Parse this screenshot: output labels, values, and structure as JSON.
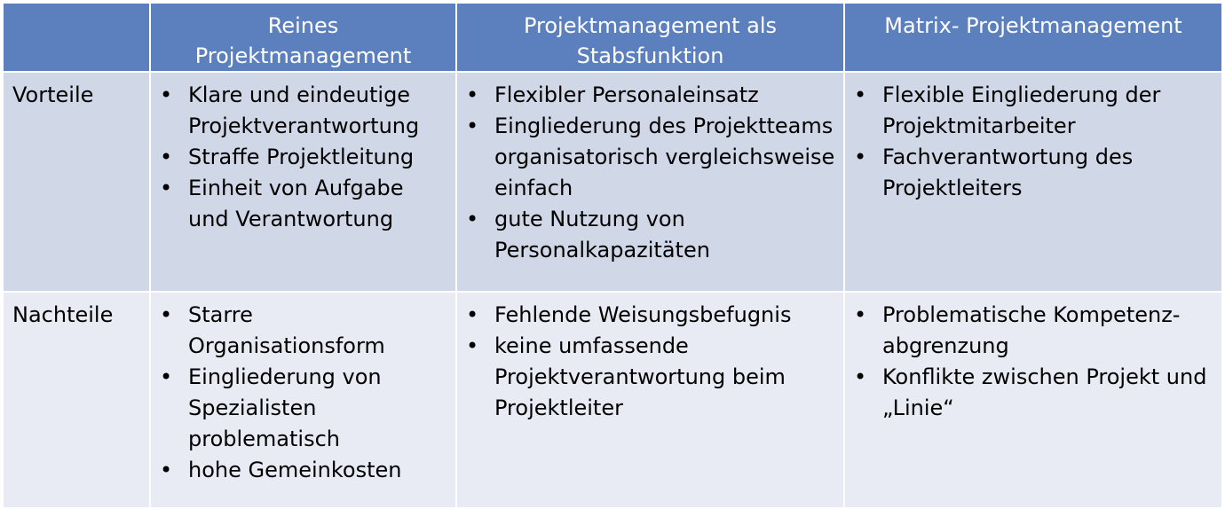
{
  "header": {
    "col0": "",
    "col1": "Reines Projektmanagement",
    "col2": "Projektmanagement als Stabsfunktion",
    "col3": "Matrix- Projektmanagement"
  },
  "rows": [
    {
      "label": "Vorteile",
      "cells": [
        [
          "Klare und eindeutige Projektverantwortung",
          "Straffe Projektleitung",
          "Einheit von Aufgabe und Verantwortung"
        ],
        [
          "Flexibler Personaleinsatz",
          "Eingliederung des Projektteams organisatorisch vergleichsweise einfach",
          "gute Nutzung von Personalkapazitäten"
        ],
        [
          "Flexible Eingliederung der Projektmitarbeiter",
          "Fachverantwortung des Projektleiters"
        ]
      ]
    },
    {
      "label": "Nachteile",
      "cells": [
        [
          "Starre Organisationsform",
          "Eingliederung von Spezialisten problematisch",
          "hohe Gemeinkosten"
        ],
        [
          "Fehlende Weisungsbefugnis",
          "keine umfassende Projektverantwortung beim Projektleiter"
        ],
        [
          "Problematische Kompetenz-abgrenzung",
          "Konflikte zwischen Projekt und „Linie“"
        ]
      ]
    }
  ],
  "colors": {
    "header_bg": "#5b80bd",
    "row_vorteile_bg": "#d0d7e7",
    "row_nachteile_bg": "#e8ebf3",
    "border": "#ffffff"
  }
}
